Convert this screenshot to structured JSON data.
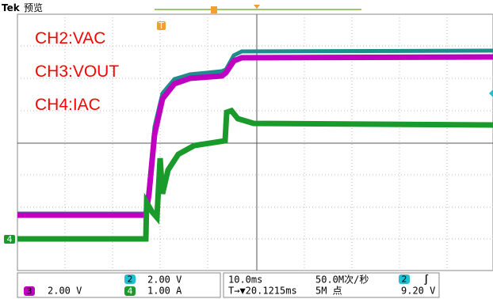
{
  "header": {
    "brand": "Tek",
    "mode": "预览"
  },
  "markers": {
    "ch4": "4",
    "trigger": "T"
  },
  "annotations": [
    "CH2:VAC",
    "CH3:VOUT",
    "CH4:IAC"
  ],
  "status": {
    "ch2": {
      "badge": "2",
      "scale": "2.00 V"
    },
    "ch3": {
      "badge": "3",
      "scale": "2.00 V"
    },
    "ch4": {
      "badge": "4",
      "scale": "1.00 A"
    },
    "timebase": "10.0ms",
    "sample_rate": "50.0M次/秒",
    "trigger_delay": "T→▼20.1215ms",
    "record_length": "5M 点",
    "trigger": {
      "source": "2",
      "slope": "∫",
      "level": "9.20 V"
    }
  }
}
